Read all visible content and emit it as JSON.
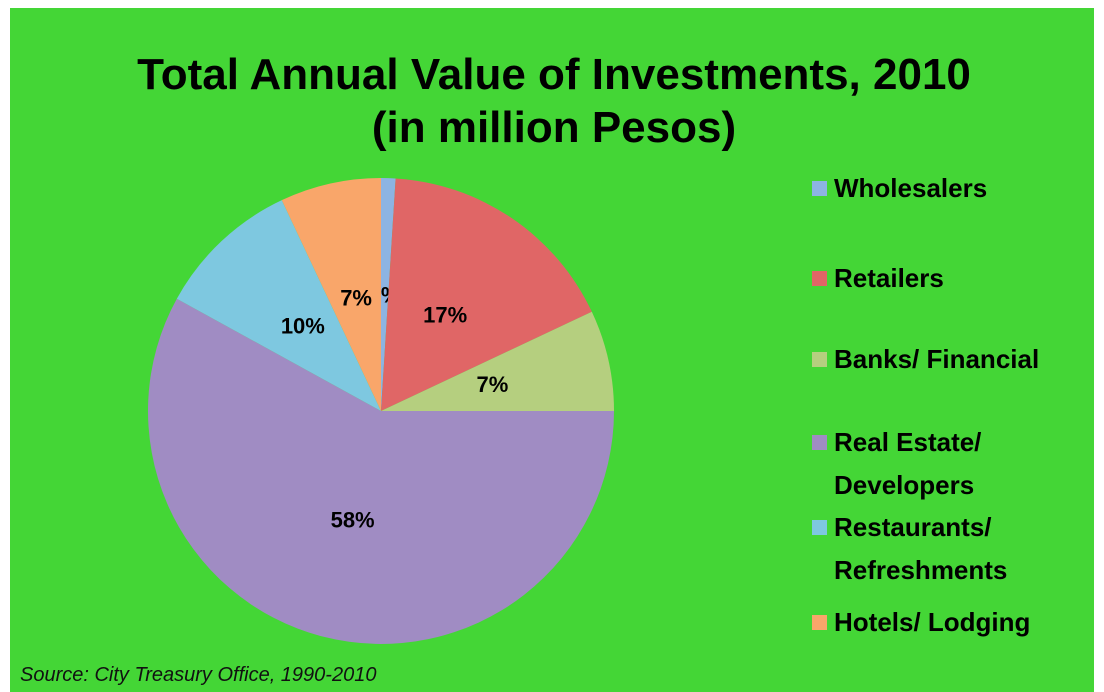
{
  "chart_data": {
    "type": "pie",
    "title": "Total Annual Value of Investments, 2010 (in million Pesos)",
    "categories": [
      "Wholesalers",
      "Retailers",
      "Banks/ Financial",
      "Real Estate/ Developers",
      "Restaurants/ Refreshments",
      "Hotels/ Lodging"
    ],
    "values": [
      1,
      17,
      7,
      58,
      10,
      7
    ],
    "value_labels": [
      "1%",
      "17%",
      "7%",
      "58%",
      "10%",
      "7%"
    ],
    "colors": [
      "#8db4e2",
      "#e06666",
      "#b5cf7f",
      "#a08cc3",
      "#7ec8e0",
      "#f9a66a"
    ],
    "legend": "right",
    "source": "Source: City Treasury Office, 1990-2010"
  }
}
